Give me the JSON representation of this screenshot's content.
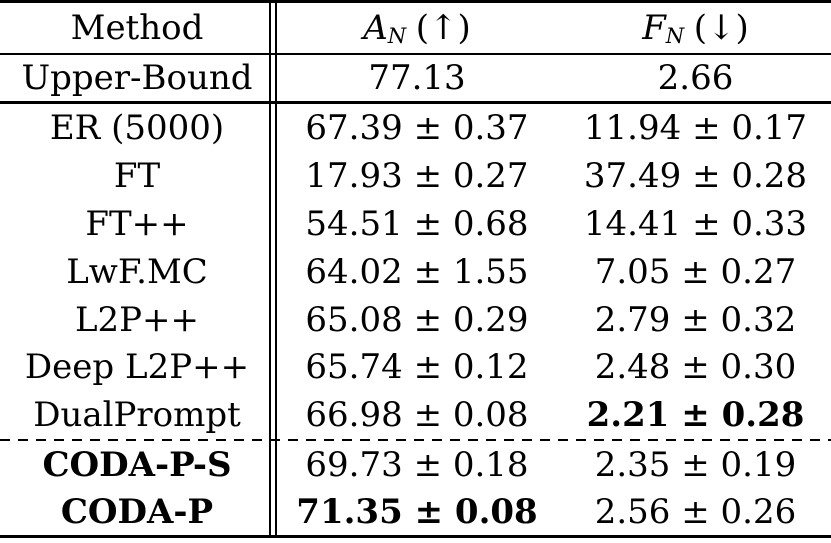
{
  "table": {
    "header": {
      "method": "Method",
      "an_symbol": "A",
      "an_subscript": "N",
      "an_direction": "(↑)",
      "fn_symbol": "F",
      "fn_subscript": "N",
      "fn_direction": "(↓)"
    },
    "upper_bound": {
      "method": "Upper-Bound",
      "an": "77.13",
      "fn": "2.66"
    },
    "rows": [
      {
        "method": "ER (5000)",
        "an": "67.39 ± 0.37",
        "fn": "11.94 ± 0.17"
      },
      {
        "method": "FT",
        "an": "17.93 ± 0.27",
        "fn": "37.49 ± 0.28"
      },
      {
        "method": "FT++",
        "an": "54.51 ± 0.68",
        "fn": "14.41 ± 0.33"
      },
      {
        "method": "LwF.MC",
        "an": "64.02 ± 1.55",
        "fn": "7.05 ± 0.27"
      },
      {
        "method": "L2P++",
        "an": "65.08 ± 0.29",
        "fn": "2.79 ± 0.32"
      },
      {
        "method": "Deep L2P++",
        "an": "65.74 ± 0.12",
        "fn": "2.48 ± 0.30"
      },
      {
        "method": "DualPrompt",
        "an": "66.98 ± 0.08",
        "fn": "2.21 ± 0.28"
      }
    ],
    "coda_rows": [
      {
        "method": "CODA-P-S",
        "an": "69.73 ± 0.18",
        "fn": "2.35 ± 0.19"
      },
      {
        "method": "CODA-P",
        "an": "71.35 ± 0.08",
        "fn": "2.56 ± 0.26"
      }
    ],
    "colors": {
      "text": "#000000",
      "background": "#ffffff",
      "rule": "#000000"
    }
  }
}
